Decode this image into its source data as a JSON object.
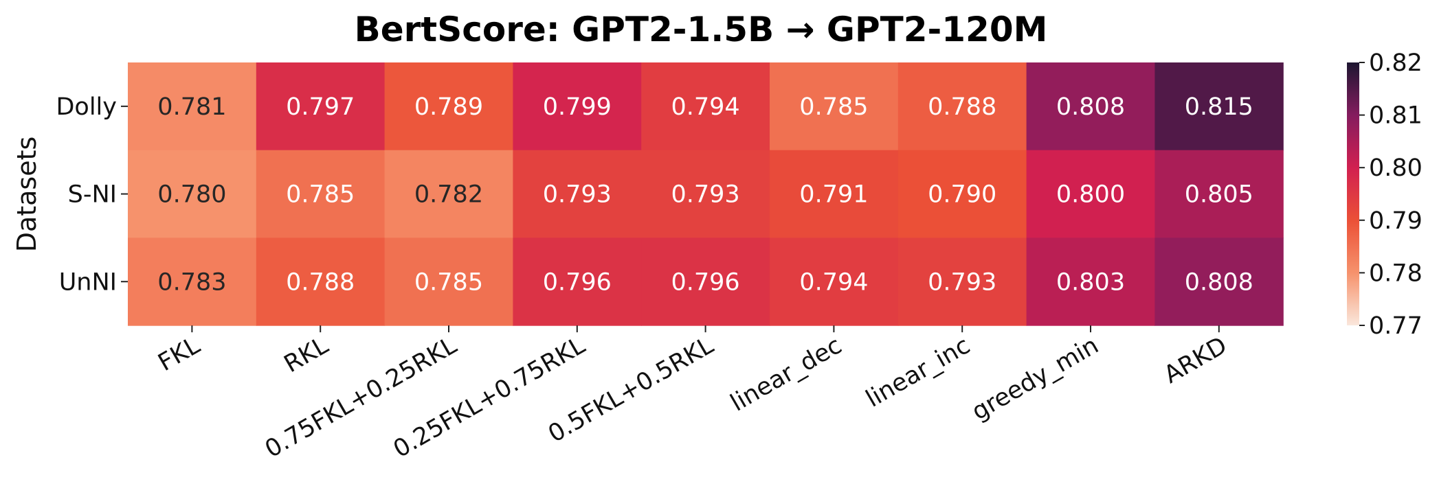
{
  "chart_data": {
    "type": "heatmap",
    "title": "BertScore: GPT2-1.5B → GPT2-120M",
    "xlabel": "",
    "ylabel": "Datasets",
    "x_categories": [
      "FKL",
      "RKL",
      "0.75FKL+0.25RKL",
      "0.25FKL+0.75RKL",
      "0.5FKL+0.5RKL",
      "linear_dec",
      "linear_inc",
      "greedy_min",
      "ARKD"
    ],
    "y_categories": [
      "Dolly",
      "S-NI",
      "UnNI"
    ],
    "values": [
      [
        0.781,
        0.797,
        0.789,
        0.799,
        0.794,
        0.785,
        0.788,
        0.808,
        0.815
      ],
      [
        0.78,
        0.785,
        0.782,
        0.793,
        0.793,
        0.791,
        0.79,
        0.8,
        0.805
      ],
      [
        0.783,
        0.788,
        0.785,
        0.796,
        0.796,
        0.794,
        0.793,
        0.803,
        0.808
      ]
    ],
    "value_labels": [
      [
        "0.781",
        "0.797",
        "0.789",
        "0.799",
        "0.794",
        "0.785",
        "0.788",
        "0.808",
        "0.815"
      ],
      [
        "0.780",
        "0.785",
        "0.782",
        "0.793",
        "0.793",
        "0.791",
        "0.790",
        "0.800",
        "0.805"
      ],
      [
        "0.783",
        "0.788",
        "0.785",
        "0.796",
        "0.796",
        "0.794",
        "0.793",
        "0.803",
        "0.808"
      ]
    ],
    "colorbar": {
      "range": [
        0.77,
        0.82
      ],
      "ticks": [
        "0.82",
        "0.81",
        "0.80",
        "0.79",
        "0.78",
        "0.77"
      ]
    },
    "colormap": "rocket_r",
    "colors": {
      "low": "#fae7dc",
      "high": "#1d1631"
    }
  }
}
